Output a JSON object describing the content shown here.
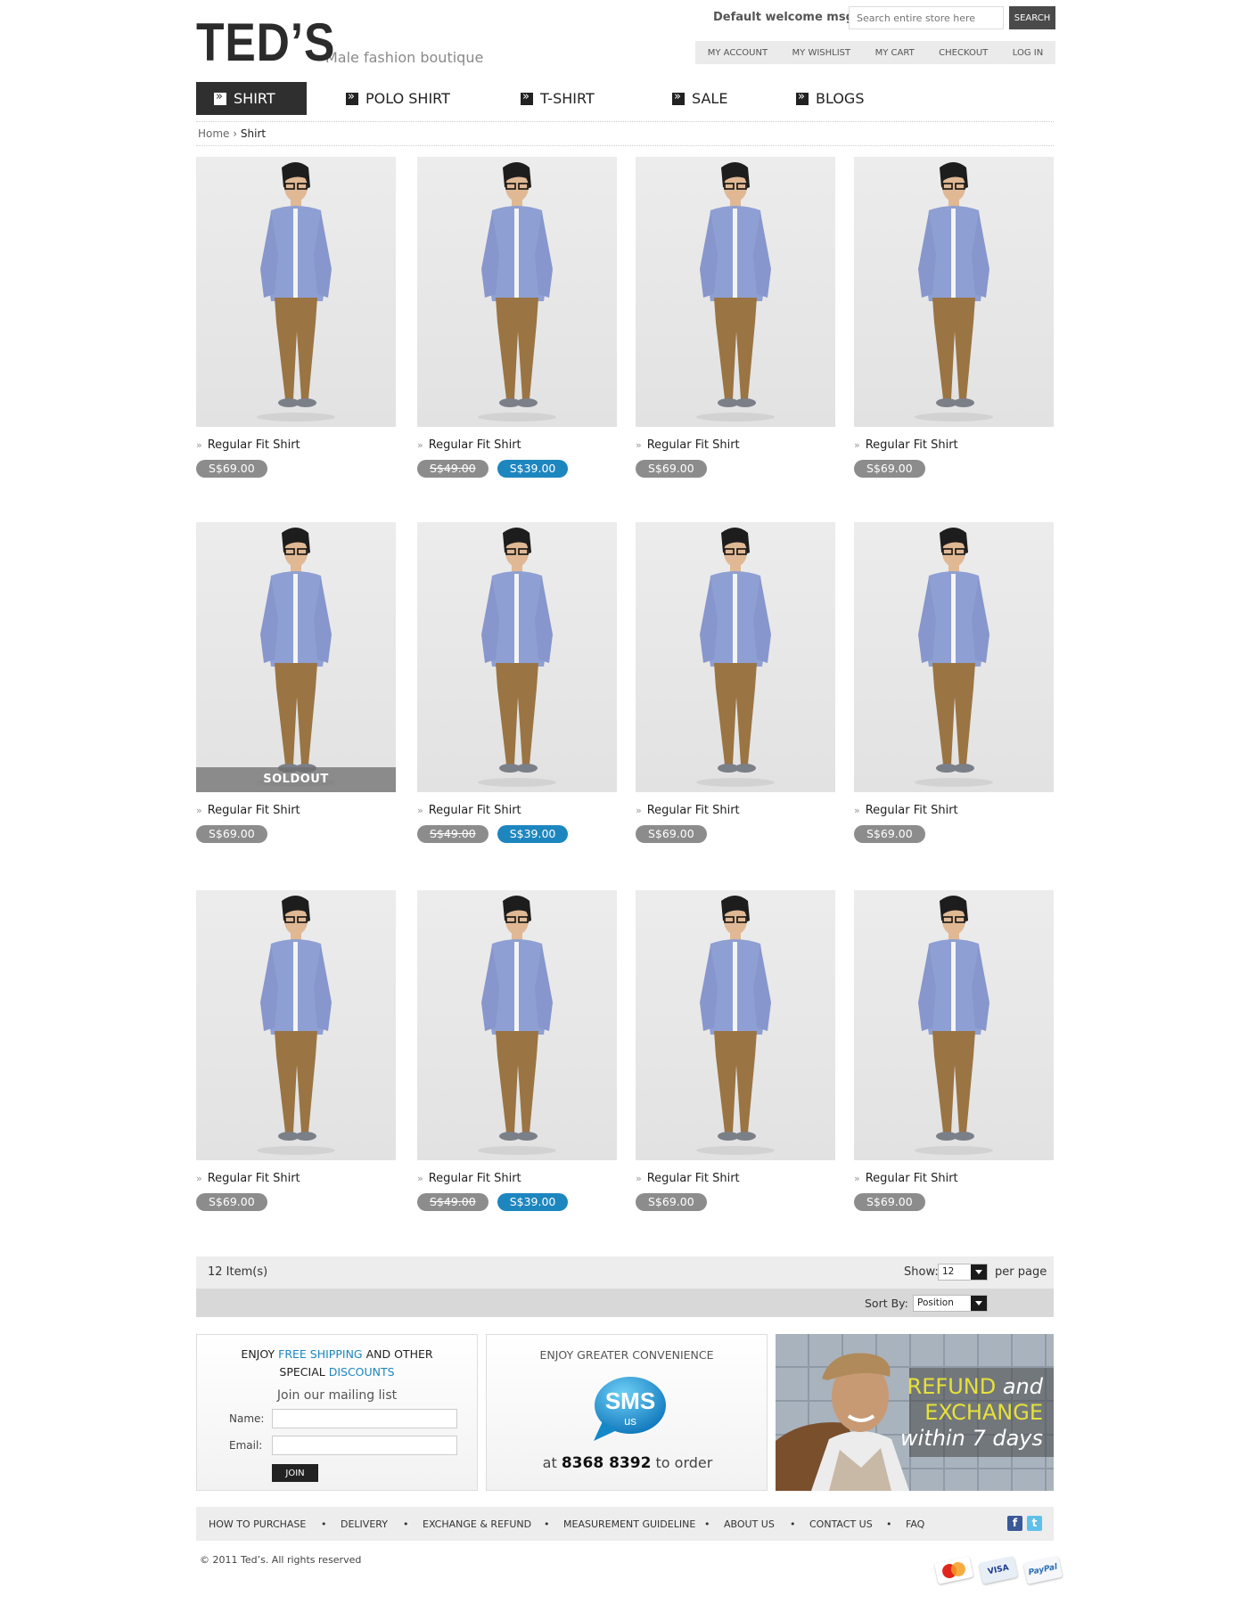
{
  "header": {
    "logo": "TED’S",
    "tagline": "Male fashion boutique",
    "welcome": "Default welcome msg!",
    "search_placeholder": "Search entire store here",
    "search_button": "SEARCH",
    "links": [
      "MY ACCOUNT",
      "MY WISHLIST",
      "MY CART",
      "CHECKOUT",
      "LOG IN"
    ]
  },
  "nav": [
    "SHIRT",
    "POLO SHIRT",
    "T-SHIRT",
    "SALE",
    "BLOGS"
  ],
  "breadcrumb": {
    "home": "Home",
    "sep": "›",
    "current": "Shirt"
  },
  "products": [
    {
      "name": "Regular Fit Shirt",
      "price": "S$69.00"
    },
    {
      "name": "Regular Fit Shirt",
      "old_price": "S$49.00",
      "price": "S$39.00"
    },
    {
      "name": "Regular Fit Shirt",
      "price": "S$69.00"
    },
    {
      "name": "Regular Fit Shirt",
      "price": "S$69.00"
    },
    {
      "name": "Regular Fit Shirt",
      "price": "S$69.00",
      "badge": "SOLDOUT"
    },
    {
      "name": "Regular Fit Shirt",
      "old_price": "S$49.00",
      "price": "S$39.00"
    },
    {
      "name": "Regular Fit Shirt",
      "price": "S$69.00"
    },
    {
      "name": "Regular Fit Shirt",
      "price": "S$69.00"
    },
    {
      "name": "Regular Fit Shirt",
      "price": "S$69.00"
    },
    {
      "name": "Regular Fit Shirt",
      "old_price": "S$49.00",
      "price": "S$39.00"
    },
    {
      "name": "Regular Fit Shirt",
      "price": "S$69.00"
    },
    {
      "name": "Regular Fit Shirt",
      "price": "S$69.00"
    }
  ],
  "toolbar": {
    "items": "12 Item(s)",
    "show_label": "Show:",
    "show_value": "12",
    "per_page": "per page",
    "sort_label": "Sort By:",
    "sort_value": "Position"
  },
  "promo": {
    "enjoy": "ENJOY",
    "free_shipping": "FREE SHIPPING",
    "and_other": "AND OTHER",
    "special": "SPECIAL",
    "discounts": "DISCOUNTS",
    "join_heading": "Join our mailing list",
    "name_label": "Name:",
    "email_label": "Email:",
    "join_button": "JOIN",
    "convenience": "ENJOY GREATER CONVENIENCE",
    "sms": "SMS",
    "sms_us": "us",
    "at": "at",
    "phone": "8368 8392",
    "to_order": "to order",
    "refund_1": "REFUND",
    "refund_and": "and",
    "refund_2": "EXCHANGE",
    "refund_3": "within 7 days"
  },
  "footer": {
    "links": [
      "HOW TO PURCHASE",
      "DELIVERY",
      "EXCHANGE & REFUND",
      "MEASUREMENT GUIDELINE",
      "ABOUT US",
      "CONTACT US",
      "FAQ"
    ],
    "copyright": "© 2011 Ted’s. All rights reserved",
    "payments": [
      "VISA",
      "PayPal"
    ]
  },
  "colors": {
    "accent": "#1d86bf",
    "dark": "#2f2f2f",
    "sale": "#1d86bf",
    "grey_pill": "#8c8c8c"
  }
}
